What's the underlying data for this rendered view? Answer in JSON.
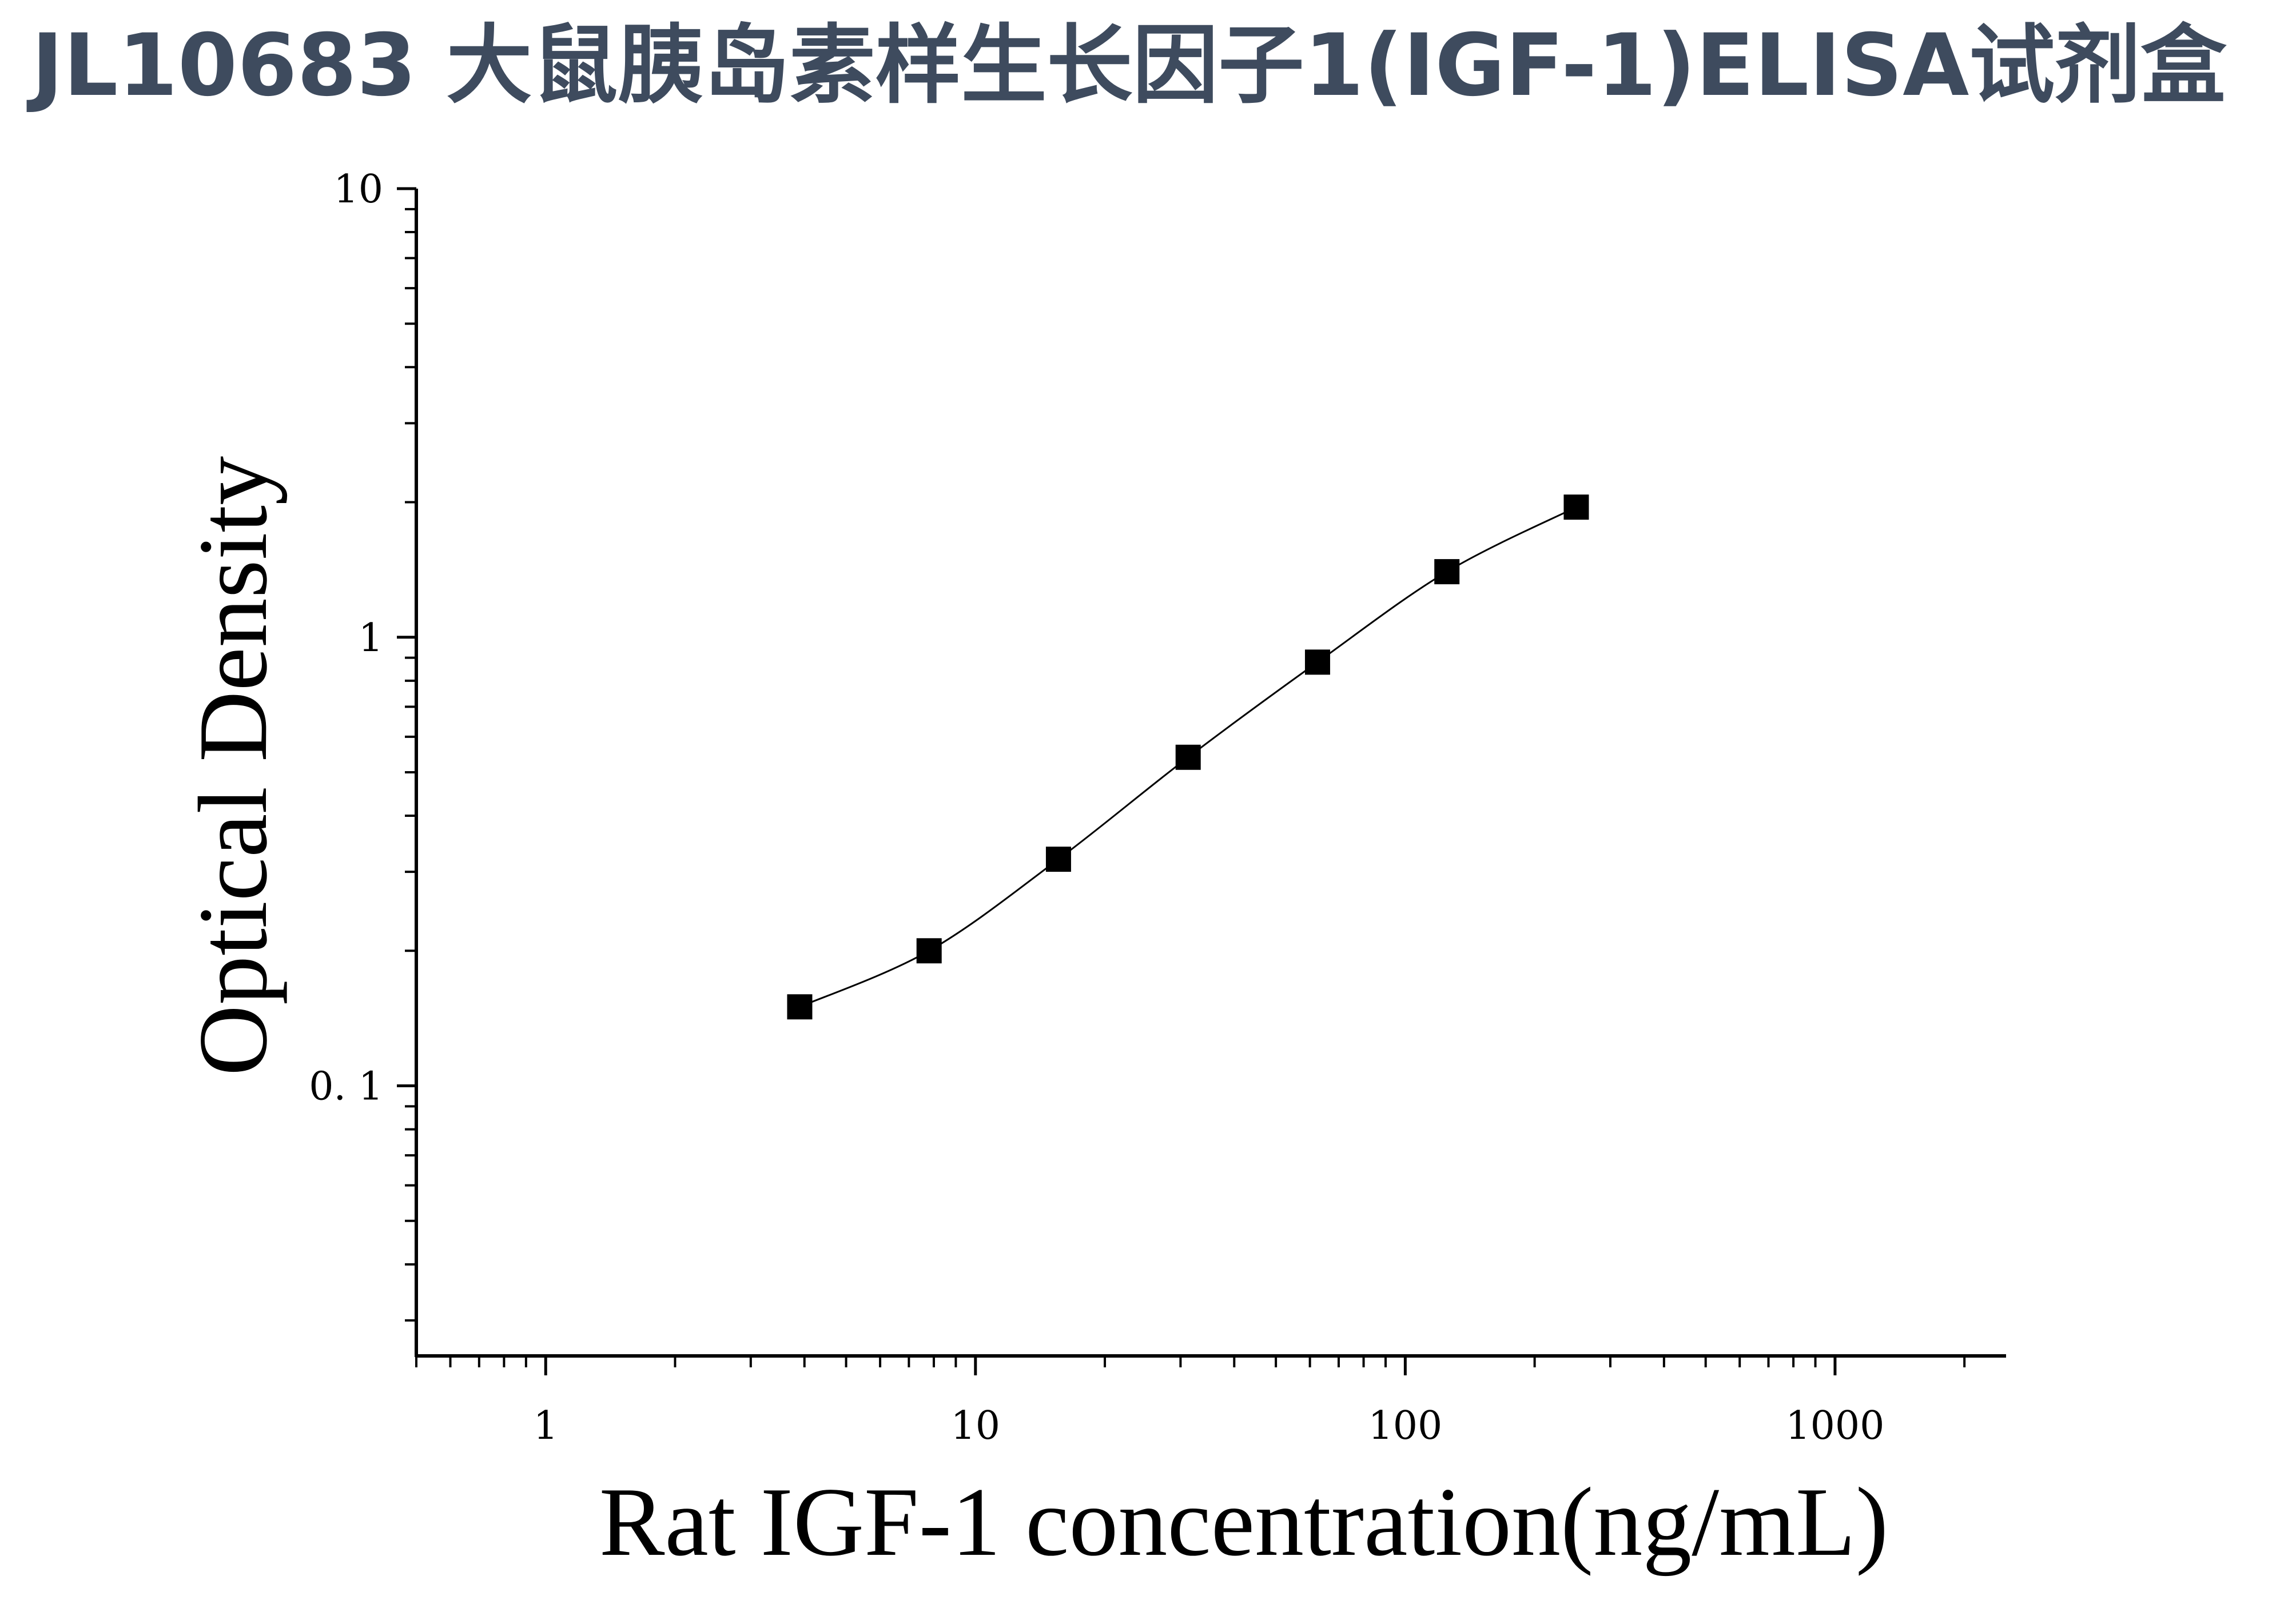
{
  "title": "JL10683 大鼠胰岛素样生长因子1(IGF-1)ELISA试剂盒",
  "chart_data": {
    "type": "scatter",
    "title": "JL10683 大鼠胰岛素样生长因子1(IGF-1)ELISA试剂盒",
    "xlabel": "Rat IGF-1 concentration(ng/mL)",
    "ylabel": "Optical Density",
    "xscale": "log",
    "yscale": "log",
    "xlim": [
      0.5,
      2500
    ],
    "ylim": [
      0.025,
      10
    ],
    "xticks": [
      1,
      10,
      100,
      1000
    ],
    "xtick_labels": [
      "1",
      "10",
      "100",
      "1000"
    ],
    "yticks": [
      0.1,
      1,
      10
    ],
    "ytick_labels": [
      "0. 1",
      "1",
      "10"
    ],
    "grid": false,
    "legend": "none",
    "marker": "square",
    "fit_line": "smooth curve through points",
    "color": "#000000",
    "series": [
      {
        "x": [
          3.9,
          7.8,
          15.6,
          31.25,
          62.5,
          125,
          250
        ],
        "y": [
          0.15,
          0.2,
          0.32,
          0.54,
          0.88,
          1.4,
          1.95
        ]
      }
    ]
  }
}
